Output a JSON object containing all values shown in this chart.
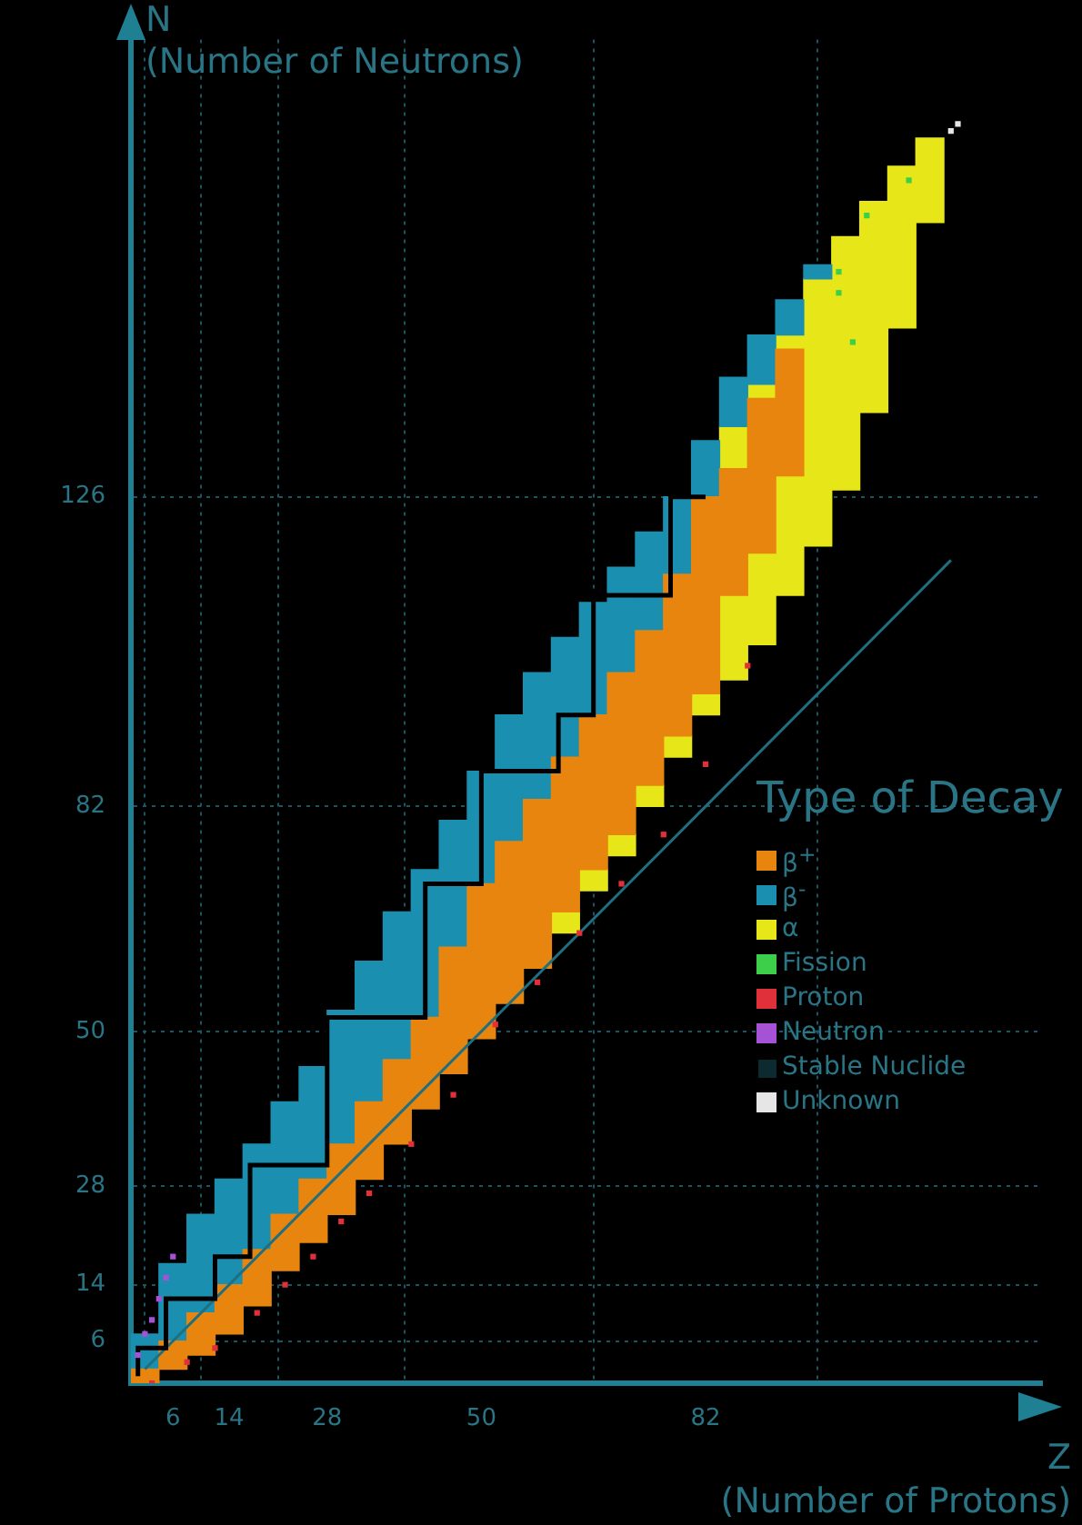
{
  "chart_data": {
    "type": "bar",
    "xlabel": "Z\n(Number of Protons)",
    "ylabel": "N\n(Number of Neutrons)",
    "legend_title": "Type of Decay",
    "xlim": [
      0,
      130
    ],
    "ylim": [
      0,
      191
    ],
    "xticks": [
      6,
      14,
      28,
      50,
      82
    ],
    "yticks": [
      6,
      14,
      28,
      50,
      82,
      126
    ],
    "grid": true,
    "legend": "right",
    "series": [
      {
        "name": "β$^{+}$",
        "color": "#e8850f",
        "x": [
          2,
          6,
          10,
          14,
          18,
          22,
          26,
          30,
          34,
          38,
          42,
          46,
          50,
          54,
          58,
          62,
          66,
          70,
          74,
          78,
          82,
          86,
          90,
          94
        ],
        "base": [
          0,
          2,
          4,
          7,
          11,
          16,
          20,
          24,
          29,
          34,
          39,
          44,
          49,
          54,
          59,
          67,
          73,
          78,
          85,
          92,
          98,
          112,
          118,
          129
        ],
        "values": [
          2,
          4,
          6,
          7,
          8,
          8,
          9,
          10,
          11,
          12,
          13,
          18,
          22,
          23,
          24,
          22,
          22,
          23,
          22,
          23,
          28,
          18,
          22,
          18
        ]
      },
      {
        "name": "β$^{-}$",
        "color": "#1a8fb0",
        "x": [
          2,
          6,
          10,
          14,
          18,
          22,
          26,
          30,
          34,
          38,
          42,
          46,
          50,
          54,
          58,
          62,
          66,
          70,
          74,
          78,
          82,
          86,
          90,
          94,
          98
        ],
        "base": [
          2,
          6,
          10,
          14,
          19,
          24,
          29,
          34,
          40,
          46,
          52,
          62,
          71,
          77,
          83,
          89,
          95,
          101,
          107,
          115,
          126,
          136,
          142,
          149,
          157
        ],
        "values": [
          5,
          11,
          14,
          15,
          15,
          16,
          16,
          19,
          20,
          21,
          21,
          18,
          16,
          18,
          18,
          17,
          16,
          15,
          14,
          11,
          8,
          7,
          7,
          5,
          2
        ]
      },
      {
        "name": "α",
        "color": "#e6e619",
        "x": [
          62,
          66,
          70,
          74,
          78,
          82,
          86,
          90,
          94,
          98,
          102,
          106,
          110,
          114
        ],
        "base": [
          64,
          70,
          75,
          82,
          89,
          95,
          100,
          105,
          112,
          119,
          127,
          138,
          150,
          165
        ],
        "values": [
          3,
          3,
          3,
          3,
          3,
          3,
          36,
          37,
          37,
          38,
          36,
          30,
          23,
          12
        ]
      },
      {
        "name": "Fission",
        "type": "scatter",
        "marker": "square",
        "color": "#3ecf4a",
        "x": [
          101,
          101,
          103,
          105,
          111
        ],
        "values": [
          155,
          158,
          148,
          166,
          171
        ]
      },
      {
        "name": "Proton",
        "type": "scatter",
        "marker": "square",
        "color": "#e0303a",
        "x": [
          3,
          8,
          12,
          18,
          22,
          26,
          30,
          34,
          40,
          46,
          52,
          58,
          64,
          70,
          76,
          82,
          88
        ],
        "values": [
          0,
          3,
          5,
          10,
          14,
          18,
          23,
          27,
          34,
          41,
          51,
          57,
          64,
          71,
          78,
          88,
          102
        ]
      },
      {
        "name": "Neutron",
        "type": "scatter",
        "marker": "square",
        "color": "#a552d6",
        "x": [
          1,
          2,
          3,
          4,
          5,
          6
        ],
        "values": [
          4,
          7,
          9,
          12,
          15,
          18
        ]
      },
      {
        "name": "Stable Nuclide",
        "type": "step",
        "color": "#000000",
        "x": [
          1,
          5,
          12,
          17,
          28,
          42,
          50,
          61,
          66,
          77,
          82
        ],
        "values": [
          1,
          5,
          12,
          18,
          31,
          52,
          71,
          87,
          95,
          112,
          126
        ]
      },
      {
        "name": "Unknown",
        "type": "scatter",
        "marker": "square",
        "color": "#e6e6e6",
        "x": [
          117,
          118
        ],
        "values": [
          178,
          179
        ]
      },
      {
        "type": "line",
        "color": "#1f6f80",
        "x": [
          2,
          117
        ],
        "values": [
          2,
          117
        ]
      }
    ]
  }
}
